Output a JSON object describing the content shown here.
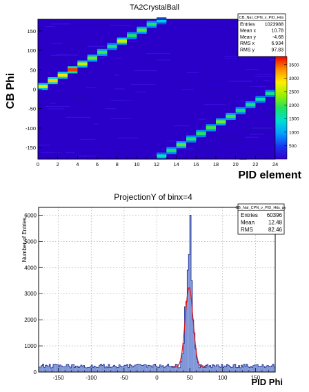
{
  "chart_data": [
    {
      "type": "heatmap",
      "title": "TA2CrystalBall",
      "xlabel": "PID element",
      "ylabel": "CB Phi",
      "xlim": [
        0,
        24
      ],
      "ylim": [
        -180,
        180
      ],
      "x_ticks": [
        0,
        2,
        4,
        6,
        8,
        10,
        12,
        14,
        16,
        18,
        20,
        22,
        24
      ],
      "y_ticks": [
        -150,
        -100,
        -50,
        0,
        50,
        100,
        150
      ],
      "colorbar": {
        "min": 0,
        "max": 3800,
        "ticks": [
          500,
          1000,
          1500,
          2000,
          2500,
          3000,
          3500
        ]
      },
      "stats": {
        "name": "CB_NaI_CPN_v_PID_Hits",
        "rows": [
          {
            "label": "Entries",
            "value": "1023988"
          },
          {
            "label": "Mean x",
            "value": "10.78"
          },
          {
            "label": "Mean y",
            "value": "-4.68"
          },
          {
            "label": "RMS x",
            "value": "6.934"
          },
          {
            "label": "RMS y",
            "value": "97.83"
          }
        ]
      },
      "band_bins": [
        {
          "x": 0,
          "phi": 7,
          "counts": 2700
        },
        {
          "x": 1,
          "phi": 22,
          "counts": 3000
        },
        {
          "x": 2,
          "phi": 36,
          "counts": 2900
        },
        {
          "x": 3,
          "phi": 50,
          "counts": 3600
        },
        {
          "x": 4,
          "phi": 65,
          "counts": 2600
        },
        {
          "x": 5,
          "phi": 80,
          "counts": 2200
        },
        {
          "x": 6,
          "phi": 95,
          "counts": 2000
        },
        {
          "x": 7,
          "phi": 110,
          "counts": 1800
        },
        {
          "x": 8,
          "phi": 124,
          "counts": 2600
        },
        {
          "x": 9,
          "phi": 138,
          "counts": 1900
        },
        {
          "x": 10,
          "phi": 152,
          "counts": 2100
        },
        {
          "x": 11,
          "phi": 167,
          "counts": 1900
        },
        {
          "x": 12,
          "phi": 176,
          "counts": 1300
        },
        {
          "x": 12,
          "phi": -172,
          "counts": 1500
        },
        {
          "x": 13,
          "phi": -158,
          "counts": 1900
        },
        {
          "x": 14,
          "phi": -143,
          "counts": 2100
        },
        {
          "x": 15,
          "phi": -128,
          "counts": 1800
        },
        {
          "x": 16,
          "phi": -114,
          "counts": 1900
        },
        {
          "x": 17,
          "phi": -99,
          "counts": 2000
        },
        {
          "x": 18,
          "phi": -84,
          "counts": 2200
        },
        {
          "x": 19,
          "phi": -70,
          "counts": 2000
        },
        {
          "x": 20,
          "phi": -55,
          "counts": 1900
        },
        {
          "x": 21,
          "phi": -40,
          "counts": 1800
        },
        {
          "x": 22,
          "phi": -26,
          "counts": 1600
        },
        {
          "x": 23,
          "phi": -11,
          "counts": 1700
        }
      ],
      "colors": {
        "palette_low": "#2a00c8",
        "palette_high": "#f00000",
        "frame": "#000000"
      }
    },
    {
      "type": "bar",
      "title": "ProjectionY of binx=4",
      "xlabel": "PID Phi",
      "ylabel": "Number of Entries",
      "xlim": [
        -180,
        180
      ],
      "ylim": [
        0,
        6300
      ],
      "x_ticks": [
        -150,
        -100,
        -50,
        0,
        50,
        100,
        150
      ],
      "y_ticks": [
        0,
        1000,
        2000,
        3000,
        4000,
        5000,
        6000
      ],
      "grid": true,
      "stats": {
        "name": "CB_NaI_CPN_v_PID_Hits_py",
        "rows": [
          {
            "label": "Entries",
            "value": "60396"
          },
          {
            "label": "Mean",
            "value": "12.48"
          },
          {
            "label": "RMS",
            "value": "82.46"
          }
        ]
      },
      "bin_width": 2,
      "background_level": 220,
      "peak_bins": [
        {
          "x": 36,
          "value": 400
        },
        {
          "x": 38,
          "value": 700
        },
        {
          "x": 40,
          "value": 1100
        },
        {
          "x": 42,
          "value": 2500
        },
        {
          "x": 44,
          "value": 2700
        },
        {
          "x": 46,
          "value": 3900
        },
        {
          "x": 48,
          "value": 4500
        },
        {
          "x": 50,
          "value": 6000
        },
        {
          "x": 52,
          "value": 3500
        },
        {
          "x": 54,
          "value": 2000
        },
        {
          "x": 56,
          "value": 1500
        },
        {
          "x": 58,
          "value": 900
        },
        {
          "x": 60,
          "value": 500
        },
        {
          "x": 62,
          "value": 350
        }
      ],
      "fit": {
        "function": "gauss",
        "amplitude": 3050,
        "mean": 49,
        "sigma": 6,
        "baseline": 180
      },
      "colors": {
        "fill": "#7d95d8",
        "line": "#1f2c8c",
        "fit": "#e81414",
        "grid": "#999999"
      }
    }
  ]
}
